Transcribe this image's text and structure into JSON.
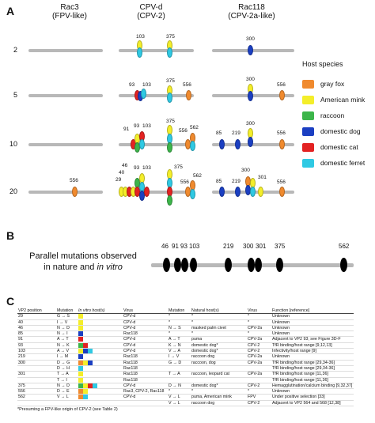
{
  "panels": {
    "A": "A",
    "B": "B",
    "C": "C"
  },
  "panel_a": {
    "columns": [
      {
        "name": "Rac3",
        "sub": "(FPV-like)"
      },
      {
        "name": "CPV-d",
        "sub": "(CPV-2)"
      },
      {
        "name": "Rac118",
        "sub": "(CPV-2a-like)"
      }
    ],
    "rows": [
      "2",
      "5",
      "10",
      "20"
    ],
    "colors": {
      "gray_fox": "#f08a2e",
      "american_mink": "#f4ee2a",
      "raccoon": "#3cb54a",
      "domestic_dog": "#1b3fc2",
      "domestic_cat": "#e32222",
      "domestic_ferret": "#2fc9e3"
    },
    "position_labels": {
      "r2_c2_a": "103",
      "r2_c2_b": "375",
      "r2_c3_a": "300",
      "r5_c2_a": "93",
      "r5_c2_b": "103",
      "r5_c2_c": "375",
      "r5_c2_d": "556",
      "r5_c3_a": "300",
      "r5_c3_b": "556",
      "r10_c2_a": "91",
      "r10_c2_b": "93",
      "r10_c2_c": "103",
      "r10_c2_d": "375",
      "r10_c2_e": "556",
      "r10_c2_f": "562",
      "r10_c3_a": "85",
      "r10_c3_b": "219",
      "r10_c3_c": "300",
      "r10_c3_d": "556",
      "r20_c1_a": "556",
      "r20_c2_a": "46",
      "r20_c2_b": "40",
      "r20_c2_c": "29",
      "r20_c2_d": "93",
      "r20_c2_e": "103",
      "r20_c2_f": "375",
      "r20_c2_g": "556",
      "r20_c2_h": "562",
      "r20_c3_a": "85",
      "r20_c3_b": "219",
      "r20_c3_c": "300",
      "r20_c3_d": "301",
      "r20_c3_e": "556"
    }
  },
  "legend": {
    "title": "Host species",
    "items": [
      {
        "label": "gray fox",
        "color": "#f08a2e"
      },
      {
        "label": "American mink",
        "color": "#f4ee2a"
      },
      {
        "label": "raccoon",
        "color": "#3cb54a"
      },
      {
        "label": "domestic dog",
        "color": "#1b3fc2"
      },
      {
        "label": "domestic cat",
        "color": "#e32222"
      },
      {
        "label": "domestic ferret",
        "color": "#2fc9e3"
      }
    ]
  },
  "panel_b": {
    "caption_line1": "Parallel mutations observed",
    "caption_line2_a": "in nature and ",
    "caption_line2_b": "in vitro",
    "positions": [
      "46",
      "91",
      "93",
      "103",
      "219",
      "300",
      "301",
      "375",
      "562"
    ]
  },
  "table": {
    "headers": {
      "vp2": "VP2 position",
      "mutation": "Mutation",
      "invitro": "In vitro host(s)",
      "virus": "Virus",
      "mutation2": "Mutation",
      "natural": "Natural host(s)",
      "virus2": "Virus",
      "function": "Function [reference]"
    },
    "rows": [
      {
        "pos": "29",
        "mut": "G → S",
        "cells": [
          "#f4ee2a"
        ],
        "virus": "CPV-d",
        "mut2": "*",
        "nat": "*",
        "virus2": "*",
        "func": "Unknown"
      },
      {
        "pos": "40",
        "mut": "I → V",
        "cells": [
          "#f4ee2a"
        ],
        "virus": "CPV-d",
        "mut2": "*",
        "nat": "*",
        "virus2": "*",
        "func": "Unknown"
      },
      {
        "pos": "46",
        "mut": "N → D",
        "cells": [
          "#f4ee2a"
        ],
        "virus": "CPV-d",
        "mut2": "N → S",
        "nat": "masked palm civet",
        "virus2": "CPV-2a",
        "func": "Unknown"
      },
      {
        "pos": "85",
        "mut": "N → I",
        "cells": [
          "#1b3fc2"
        ],
        "virus": "Rac118",
        "mut2": "*",
        "nat": "*",
        "virus2": "*",
        "func": "Unknown"
      },
      {
        "pos": "91",
        "mut": "A → T",
        "cells": [
          "#e32222"
        ],
        "virus": "CPV-d",
        "mut2": "A → T",
        "nat": "puma",
        "virus2": "CPV-2a",
        "func": "Adjacent to VP2 93; see Figure 3D-F"
      },
      {
        "pos": "93",
        "mut": "N → K",
        "cells": [
          "#3cb54a",
          "#e32222"
        ],
        "virus": "CPV-d",
        "mut2": "K → N",
        "nat": "domestic dog*",
        "virus2": "CPV-2",
        "func": "TfR binding/host range [9,12,13]"
      },
      {
        "pos": "103",
        "mut": "A → V",
        "cells": [
          "#f4ee2a",
          "#1b3fc2",
          "#2fc9e3"
        ],
        "virus": "CPV-d",
        "mut2": "V → A",
        "nat": "domestic dog*",
        "virus2": "CPV-2",
        "func": "Infectivity/host range [9]"
      },
      {
        "pos": "219",
        "mut": "I → M",
        "cells": [
          "#1b3fc2"
        ],
        "virus": "Rac118",
        "mut2": "I → V",
        "nat": "raccoon dog",
        "virus2": "CPV-2a",
        "func": "Unknown"
      },
      {
        "pos": "300",
        "mut": "D → G",
        "cells": [
          "#f08a2e",
          "#f4ee2a",
          "#1b3fc2"
        ],
        "virus": "Rac118",
        "mut2": "G → D",
        "nat": "raccoon, dog",
        "virus2": "CPV-2a",
        "func": "TfR binding/host range [29,34-36]"
      },
      {
        "pos": "",
        "mut": "D → H",
        "cells": [
          "#2fc9e3"
        ],
        "virus": "Rac118",
        "mut2": "",
        "nat": "",
        "virus2": "",
        "func": "TfR binding/host range [29,34-36]"
      },
      {
        "pos": "301",
        "mut": "T → A",
        "cells": [
          "#f4ee2a"
        ],
        "virus": "Rac118",
        "mut2": "T → A",
        "nat": "raccoon, leopard cat",
        "virus2": "CPV-2a",
        "func": "TfR binding/host range [11,36]"
      },
      {
        "pos": "",
        "mut": "T → I",
        "cells": [
          "#f4ee2a"
        ],
        "virus": "Rac118",
        "mut2": "",
        "nat": "",
        "virus2": "",
        "func": "TfR binding/host range [11,36]"
      },
      {
        "pos": "375",
        "mut": "N → D",
        "cells": [
          "#3cb54a",
          "#f4ee2a",
          "#e32222",
          "#2fc9e3"
        ],
        "virus": "CPV-d",
        "mut2": "D → N",
        "nat": "domestic dog*",
        "virus2": "CPV-2",
        "func": "Hemagglutination/calcium binding [9,32,37]"
      },
      {
        "pos": "556",
        "mut": "D → E",
        "cells": [
          "#f08a2e",
          "#f4ee2a"
        ],
        "virus": "Rac3, CPV-2, Rac118",
        "mut2": "*",
        "nat": "*",
        "virus2": "*",
        "func": "Unknown"
      },
      {
        "pos": "562",
        "mut": "V → L",
        "cells": [
          "#f08a2e",
          "#2fc9e3"
        ],
        "virus": "CPV-d",
        "mut2": "V → L",
        "nat": "puma, American mink",
        "virus2": "FPV",
        "func": "Under positive selection [33]"
      },
      {
        "pos": "",
        "mut": "",
        "cells": [],
        "virus": "",
        "mut2": "V → L",
        "nat": "raccoon dog",
        "virus2": "CPV-2",
        "func": "Adjacent to VP2 564 and 568 [12,38]"
      }
    ],
    "footnote": "*Presuming a FPV-like origin of CPV-2 (see Table 2)"
  }
}
